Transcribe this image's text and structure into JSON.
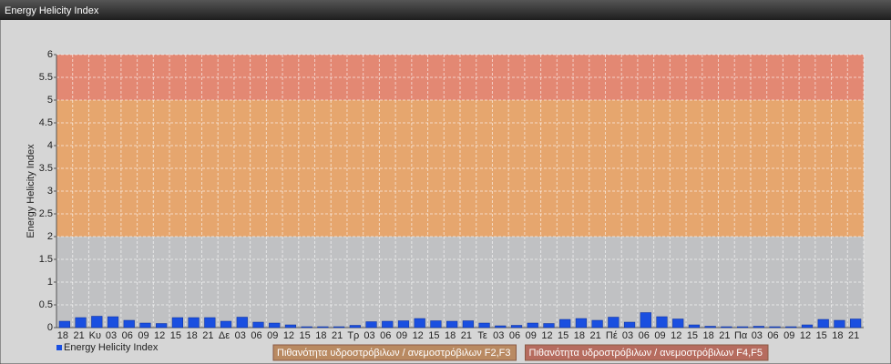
{
  "chart_data": {
    "type": "bar",
    "title": "Energy Helicity Index",
    "y_label": "Energy Helicity Index",
    "categories": [
      "18",
      "21",
      "Κυ",
      "03",
      "06",
      "09",
      "12",
      "15",
      "18",
      "21",
      "Δε",
      "03",
      "06",
      "09",
      "12",
      "15",
      "18",
      "21",
      "Τρ",
      "03",
      "06",
      "09",
      "12",
      "15",
      "18",
      "21",
      "Τε",
      "03",
      "06",
      "09",
      "12",
      "15",
      "18",
      "21",
      "Πέ",
      "03",
      "06",
      "09",
      "12",
      "15",
      "18",
      "21",
      "Πα",
      "03",
      "06",
      "09",
      "12",
      "15",
      "18",
      "21"
    ],
    "series": [
      {
        "name": "Energy Helicity Index",
        "color": "#1a4fe0",
        "values": [
          0.14,
          0.22,
          0.25,
          0.24,
          0.16,
          0.1,
          0.09,
          0.22,
          0.22,
          0.22,
          0.14,
          0.23,
          0.12,
          0.1,
          0.06,
          0.02,
          0.02,
          0.02,
          0.05,
          0.13,
          0.14,
          0.15,
          0.2,
          0.15,
          0.14,
          0.15,
          0.1,
          0.04,
          0.05,
          0.1,
          0.09,
          0.18,
          0.2,
          0.16,
          0.23,
          0.12,
          0.33,
          0.24,
          0.19,
          0.06,
          0.03,
          0.02,
          0.02,
          0.03,
          0.02,
          0.02,
          0.06,
          0.18,
          0.16,
          0.19
        ]
      }
    ],
    "bands": [
      {
        "from": 0,
        "to": 2,
        "color": "#c0c1c3"
      },
      {
        "from": 2,
        "to": 5,
        "color": "#e6a66e",
        "name": "Πιθανότητα υδροστρόβιλων / ανεμοστρόβιλων F2,F3",
        "legend_color": "#b98a62"
      },
      {
        "from": 5,
        "to": 6,
        "color": "#e38873",
        "name": "Πιθανότητα υδροστρόβιλων / ανεμοστρόβιλων F4,F5",
        "legend_color": "#b66c5f"
      }
    ],
    "ylim": [
      0,
      6
    ],
    "yticks": [
      0,
      0.5,
      1,
      1.5,
      2,
      2.5,
      3,
      3.5,
      4,
      4.5,
      5,
      5.5,
      6
    ],
    "grid": true
  }
}
